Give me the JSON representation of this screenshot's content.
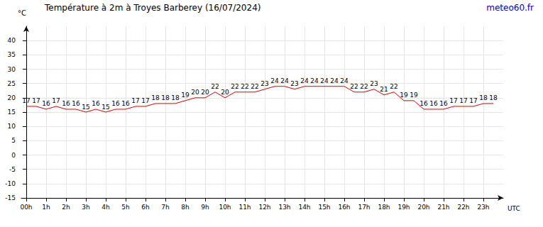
{
  "chart_data": {
    "type": "line",
    "title": "Température à 2m à Troyes Barberey (16/07/2024)",
    "credit": "meteo60.fr",
    "x_label": "UTC",
    "y_label": "°C",
    "x": [
      0,
      0.5,
      1,
      1.5,
      2,
      2.5,
      3,
      3.5,
      4,
      4.5,
      5,
      5.5,
      6,
      6.5,
      7,
      7.5,
      8,
      8.5,
      9,
      9.5,
      10,
      10.5,
      11,
      11.5,
      12,
      12.5,
      13,
      13.5,
      14,
      14.5,
      15,
      15.5,
      16,
      16.5,
      17,
      17.5,
      18,
      18.5,
      19,
      19.5,
      20,
      20.5,
      21,
      21.5,
      22,
      22.5,
      23,
      23.5
    ],
    "values": [
      17,
      17,
      16,
      17,
      16,
      16,
      15,
      16,
      15,
      16,
      16,
      17,
      17,
      18,
      18,
      18,
      19,
      20,
      20,
      22,
      20,
      22,
      22,
      22,
      23,
      24,
      24,
      23,
      24,
      24,
      24,
      24,
      24,
      22,
      22,
      23,
      21,
      22,
      19,
      19,
      16,
      16,
      16,
      17,
      17,
      17,
      18,
      18
    ],
    "color": "#e00000",
    "xlim": [
      -0.25,
      24
    ],
    "xticks": [
      {
        "value": 0,
        "label": "00h"
      },
      {
        "value": 1,
        "label": "1h"
      },
      {
        "value": 2,
        "label": "2h"
      },
      {
        "value": 3,
        "label": "3h"
      },
      {
        "value": 4,
        "label": "4h"
      },
      {
        "value": 5,
        "label": "5h"
      },
      {
        "value": 6,
        "label": "6h"
      },
      {
        "value": 7,
        "label": "7h"
      },
      {
        "value": 8,
        "label": "8h"
      },
      {
        "value": 9,
        "label": "9h"
      },
      {
        "value": 10,
        "label": "10h"
      },
      {
        "value": 11,
        "label": "11h"
      },
      {
        "value": 12,
        "label": "12h"
      },
      {
        "value": 13,
        "label": "13h"
      },
      {
        "value": 14,
        "label": "14h"
      },
      {
        "value": 15,
        "label": "15h"
      },
      {
        "value": 16,
        "label": "16h"
      },
      {
        "value": 17,
        "label": "17h"
      },
      {
        "value": 18,
        "label": "18h"
      },
      {
        "value": 19,
        "label": "19h"
      },
      {
        "value": 20,
        "label": "20h"
      },
      {
        "value": 21,
        "label": "21h"
      },
      {
        "value": 22,
        "label": "22h"
      },
      {
        "value": 23,
        "label": "23h"
      }
    ],
    "ylim": [
      -15,
      45
    ],
    "yticks": [
      -15,
      -10,
      -5,
      0,
      5,
      10,
      15,
      20,
      25,
      30,
      35,
      40
    ],
    "grid": true,
    "data_labels": true
  }
}
